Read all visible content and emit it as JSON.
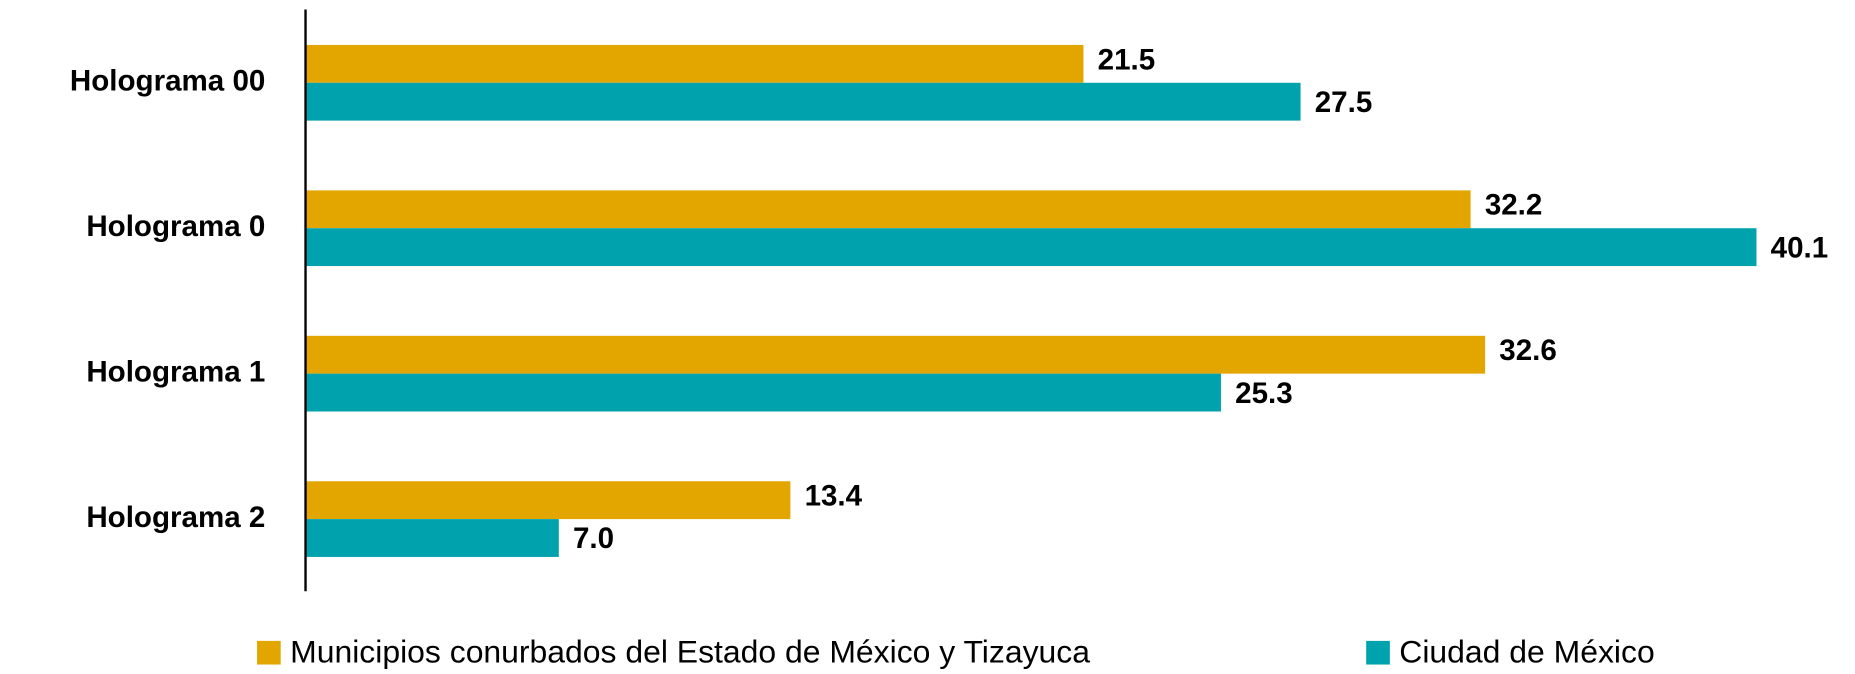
{
  "chart_data": {
    "type": "bar",
    "orientation": "horizontal",
    "categories": [
      "Holograma 00",
      "Holograma 0",
      "Holograma 1",
      "Holograma 2"
    ],
    "series": [
      {
        "name": "Municipios conurbados del Estado de México y Tizayuca",
        "color": "#e3a600",
        "values": [
          21.5,
          32.2,
          32.6,
          13.4
        ],
        "value_labels": [
          "21.5",
          "32.2",
          "32.6",
          "13.4"
        ]
      },
      {
        "name": "Ciudad de México",
        "color": "#00a3ad",
        "values": [
          27.5,
          40.1,
          25.3,
          7.0
        ],
        "value_labels": [
          "27.5",
          "40.1",
          "25.3",
          "7.0"
        ]
      }
    ],
    "legend": "bottom"
  }
}
